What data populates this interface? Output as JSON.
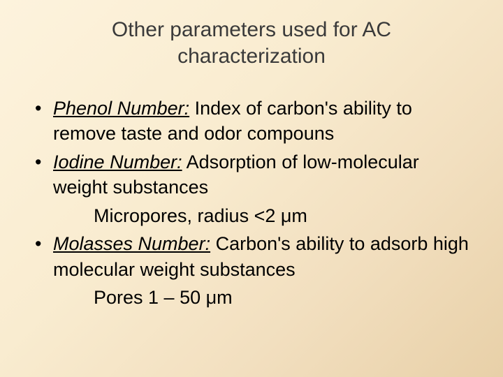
{
  "slide": {
    "title": "Other parameters used for AC characterization",
    "title_color": "#3a3a3a",
    "title_fontsize": 30,
    "body_fontsize": 27,
    "body_color": "#000000",
    "background_gradient": {
      "type": "linear",
      "angle_deg": 135,
      "stops": [
        {
          "color": "#fdf3dd",
          "at": 0
        },
        {
          "color": "#f9ecd0",
          "at": 40
        },
        {
          "color": "#f2dfbf",
          "at": 70
        },
        {
          "color": "#e8d0a8",
          "at": 100
        }
      ]
    },
    "items": [
      {
        "term": "Phenol Number:",
        "desc": " Index of carbon's ability to remove taste and odor compouns",
        "sub": null
      },
      {
        "term": "Iodine Number:",
        "desc": " Adsorption of low-molecular weight substances",
        "sub": "Micropores, radius <2 μm"
      },
      {
        "term": "Molasses Number:",
        "desc": " Carbon's ability to adsorb high molecular weight substances",
        "sub": "Pores 1 – 50 μm"
      }
    ]
  }
}
